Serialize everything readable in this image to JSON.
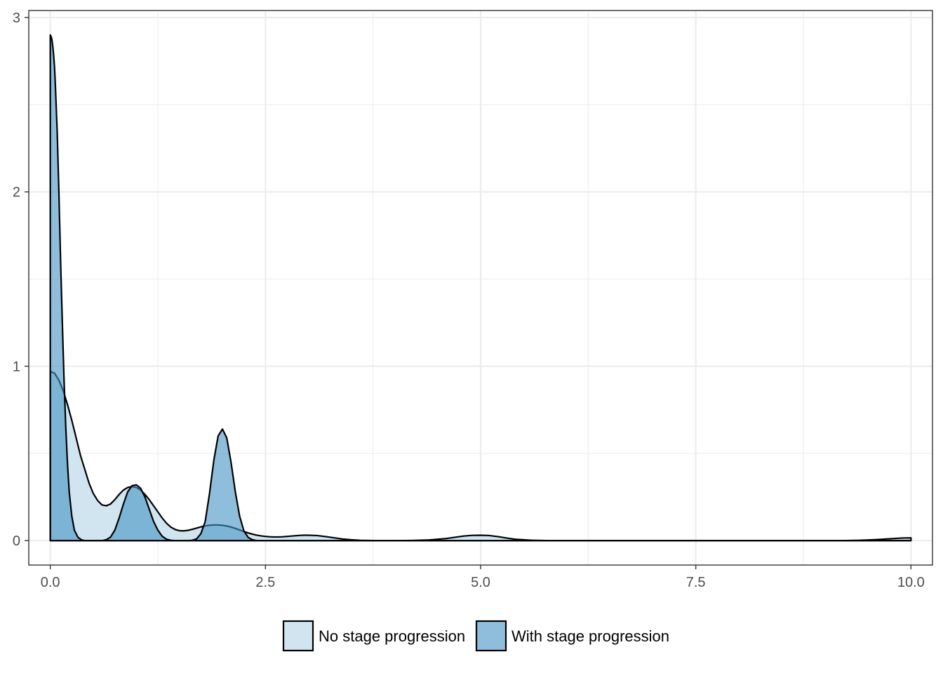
{
  "chart_data": {
    "type": "area",
    "title": "",
    "xlabel": "",
    "ylabel": "",
    "xlim": [
      -0.25,
      10.25
    ],
    "ylim": [
      -0.14,
      3.04
    ],
    "x_ticks": [
      0,
      2.5,
      5,
      7.5,
      10
    ],
    "x_tick_labels": [
      "0.0",
      "2.5",
      "5.0",
      "7.5",
      "10.0"
    ],
    "y_ticks": [
      0,
      1,
      2,
      3
    ],
    "y_tick_labels": [
      "0",
      "1",
      "2",
      "3"
    ],
    "grid": true,
    "legend_position": "bottom",
    "series": [
      {
        "name": "No stage progression",
        "color": "#d1e5f0",
        "opacity": 1,
        "x": [
          0,
          0.05,
          0.1,
          0.15,
          0.2,
          0.25,
          0.3,
          0.35,
          0.4,
          0.45,
          0.5,
          0.55,
          0.6,
          0.65,
          0.7,
          0.75,
          0.8,
          0.85,
          0.9,
          0.95,
          1.0,
          1.05,
          1.1,
          1.15,
          1.2,
          1.25,
          1.3,
          1.35,
          1.4,
          1.45,
          1.5,
          1.55,
          1.6,
          1.65,
          1.7,
          1.75,
          1.8,
          1.85,
          1.9,
          1.95,
          2.0,
          2.05,
          2.1,
          2.15,
          2.2,
          2.25,
          2.3,
          2.35,
          2.4,
          2.45,
          2.5,
          2.55,
          2.6,
          2.65,
          2.7,
          2.75,
          2.8,
          2.85,
          2.9,
          2.95,
          3.0,
          3.1,
          3.2,
          3.3,
          3.4,
          3.5,
          3.6,
          3.7,
          3.8,
          3.9,
          4.0,
          4.2,
          4.4,
          4.6,
          4.7,
          4.8,
          4.9,
          5.0,
          5.1,
          5.2,
          5.3,
          5.4,
          5.6,
          5.8,
          6.0,
          6.5,
          7.0,
          7.5,
          8.0,
          8.5,
          9.0,
          9.2,
          9.4,
          9.5,
          9.6,
          9.7,
          9.8,
          9.9,
          10.0
        ],
        "values": [
          0.97,
          0.96,
          0.92,
          0.86,
          0.78,
          0.69,
          0.59,
          0.49,
          0.41,
          0.33,
          0.27,
          0.23,
          0.205,
          0.2,
          0.21,
          0.235,
          0.265,
          0.29,
          0.305,
          0.31,
          0.305,
          0.29,
          0.265,
          0.235,
          0.2,
          0.165,
          0.13,
          0.1,
          0.078,
          0.064,
          0.057,
          0.056,
          0.059,
          0.065,
          0.072,
          0.079,
          0.085,
          0.088,
          0.09,
          0.09,
          0.088,
          0.084,
          0.078,
          0.07,
          0.061,
          0.052,
          0.044,
          0.037,
          0.031,
          0.027,
          0.024,
          0.022,
          0.021,
          0.021,
          0.022,
          0.024,
          0.026,
          0.028,
          0.03,
          0.031,
          0.031,
          0.029,
          0.023,
          0.016,
          0.009,
          0.005,
          0.002,
          0.001,
          0.0,
          0.0,
          0.0,
          0.001,
          0.004,
          0.012,
          0.019,
          0.026,
          0.03,
          0.031,
          0.029,
          0.023,
          0.015,
          0.008,
          0.002,
          0.0,
          0.0,
          0.0,
          0.0,
          0.0,
          0.0,
          0.0,
          0.0,
          0.0,
          0.002,
          0.004,
          0.006,
          0.009,
          0.012,
          0.015,
          0.016
        ]
      },
      {
        "name": "With stage progression",
        "color": "#4393c3",
        "opacity": 0.6,
        "x": [
          0,
          0.01,
          0.02,
          0.03,
          0.04,
          0.05,
          0.06,
          0.08,
          0.1,
          0.12,
          0.14,
          0.16,
          0.18,
          0.2,
          0.22,
          0.25,
          0.28,
          0.32,
          0.36,
          0.4,
          0.45,
          0.5,
          0.55,
          0.6,
          0.65,
          0.7,
          0.75,
          0.8,
          0.85,
          0.9,
          0.95,
          1.0,
          1.05,
          1.1,
          1.15,
          1.2,
          1.25,
          1.3,
          1.35,
          1.4,
          1.45,
          1.5,
          1.55,
          1.6,
          1.65,
          1.7,
          1.75,
          1.8,
          1.85,
          1.9,
          1.95,
          2.0,
          2.05,
          2.1,
          2.15,
          2.2,
          2.25,
          2.3,
          2.35,
          2.4,
          2.5,
          3.0,
          4.0,
          5.0,
          6.0,
          7.0,
          8.0,
          9.0,
          10.0
        ],
        "values": [
          2.9,
          2.89,
          2.87,
          2.83,
          2.78,
          2.71,
          2.6,
          2.35,
          2.0,
          1.6,
          1.25,
          0.92,
          0.65,
          0.44,
          0.28,
          0.14,
          0.06,
          0.02,
          0.005,
          0.0,
          0.0,
          0.0,
          0.0,
          0.0,
          0.005,
          0.02,
          0.06,
          0.13,
          0.21,
          0.28,
          0.315,
          0.32,
          0.3,
          0.25,
          0.18,
          0.11,
          0.06,
          0.025,
          0.008,
          0.002,
          0.0,
          0.0,
          0.0,
          0.0,
          0.002,
          0.01,
          0.04,
          0.11,
          0.27,
          0.46,
          0.6,
          0.64,
          0.59,
          0.45,
          0.28,
          0.14,
          0.055,
          0.018,
          0.005,
          0.0,
          0.0,
          0.0,
          0.0,
          0.0,
          0.0,
          0.0,
          0.0,
          0.0,
          0.0
        ]
      }
    ]
  }
}
